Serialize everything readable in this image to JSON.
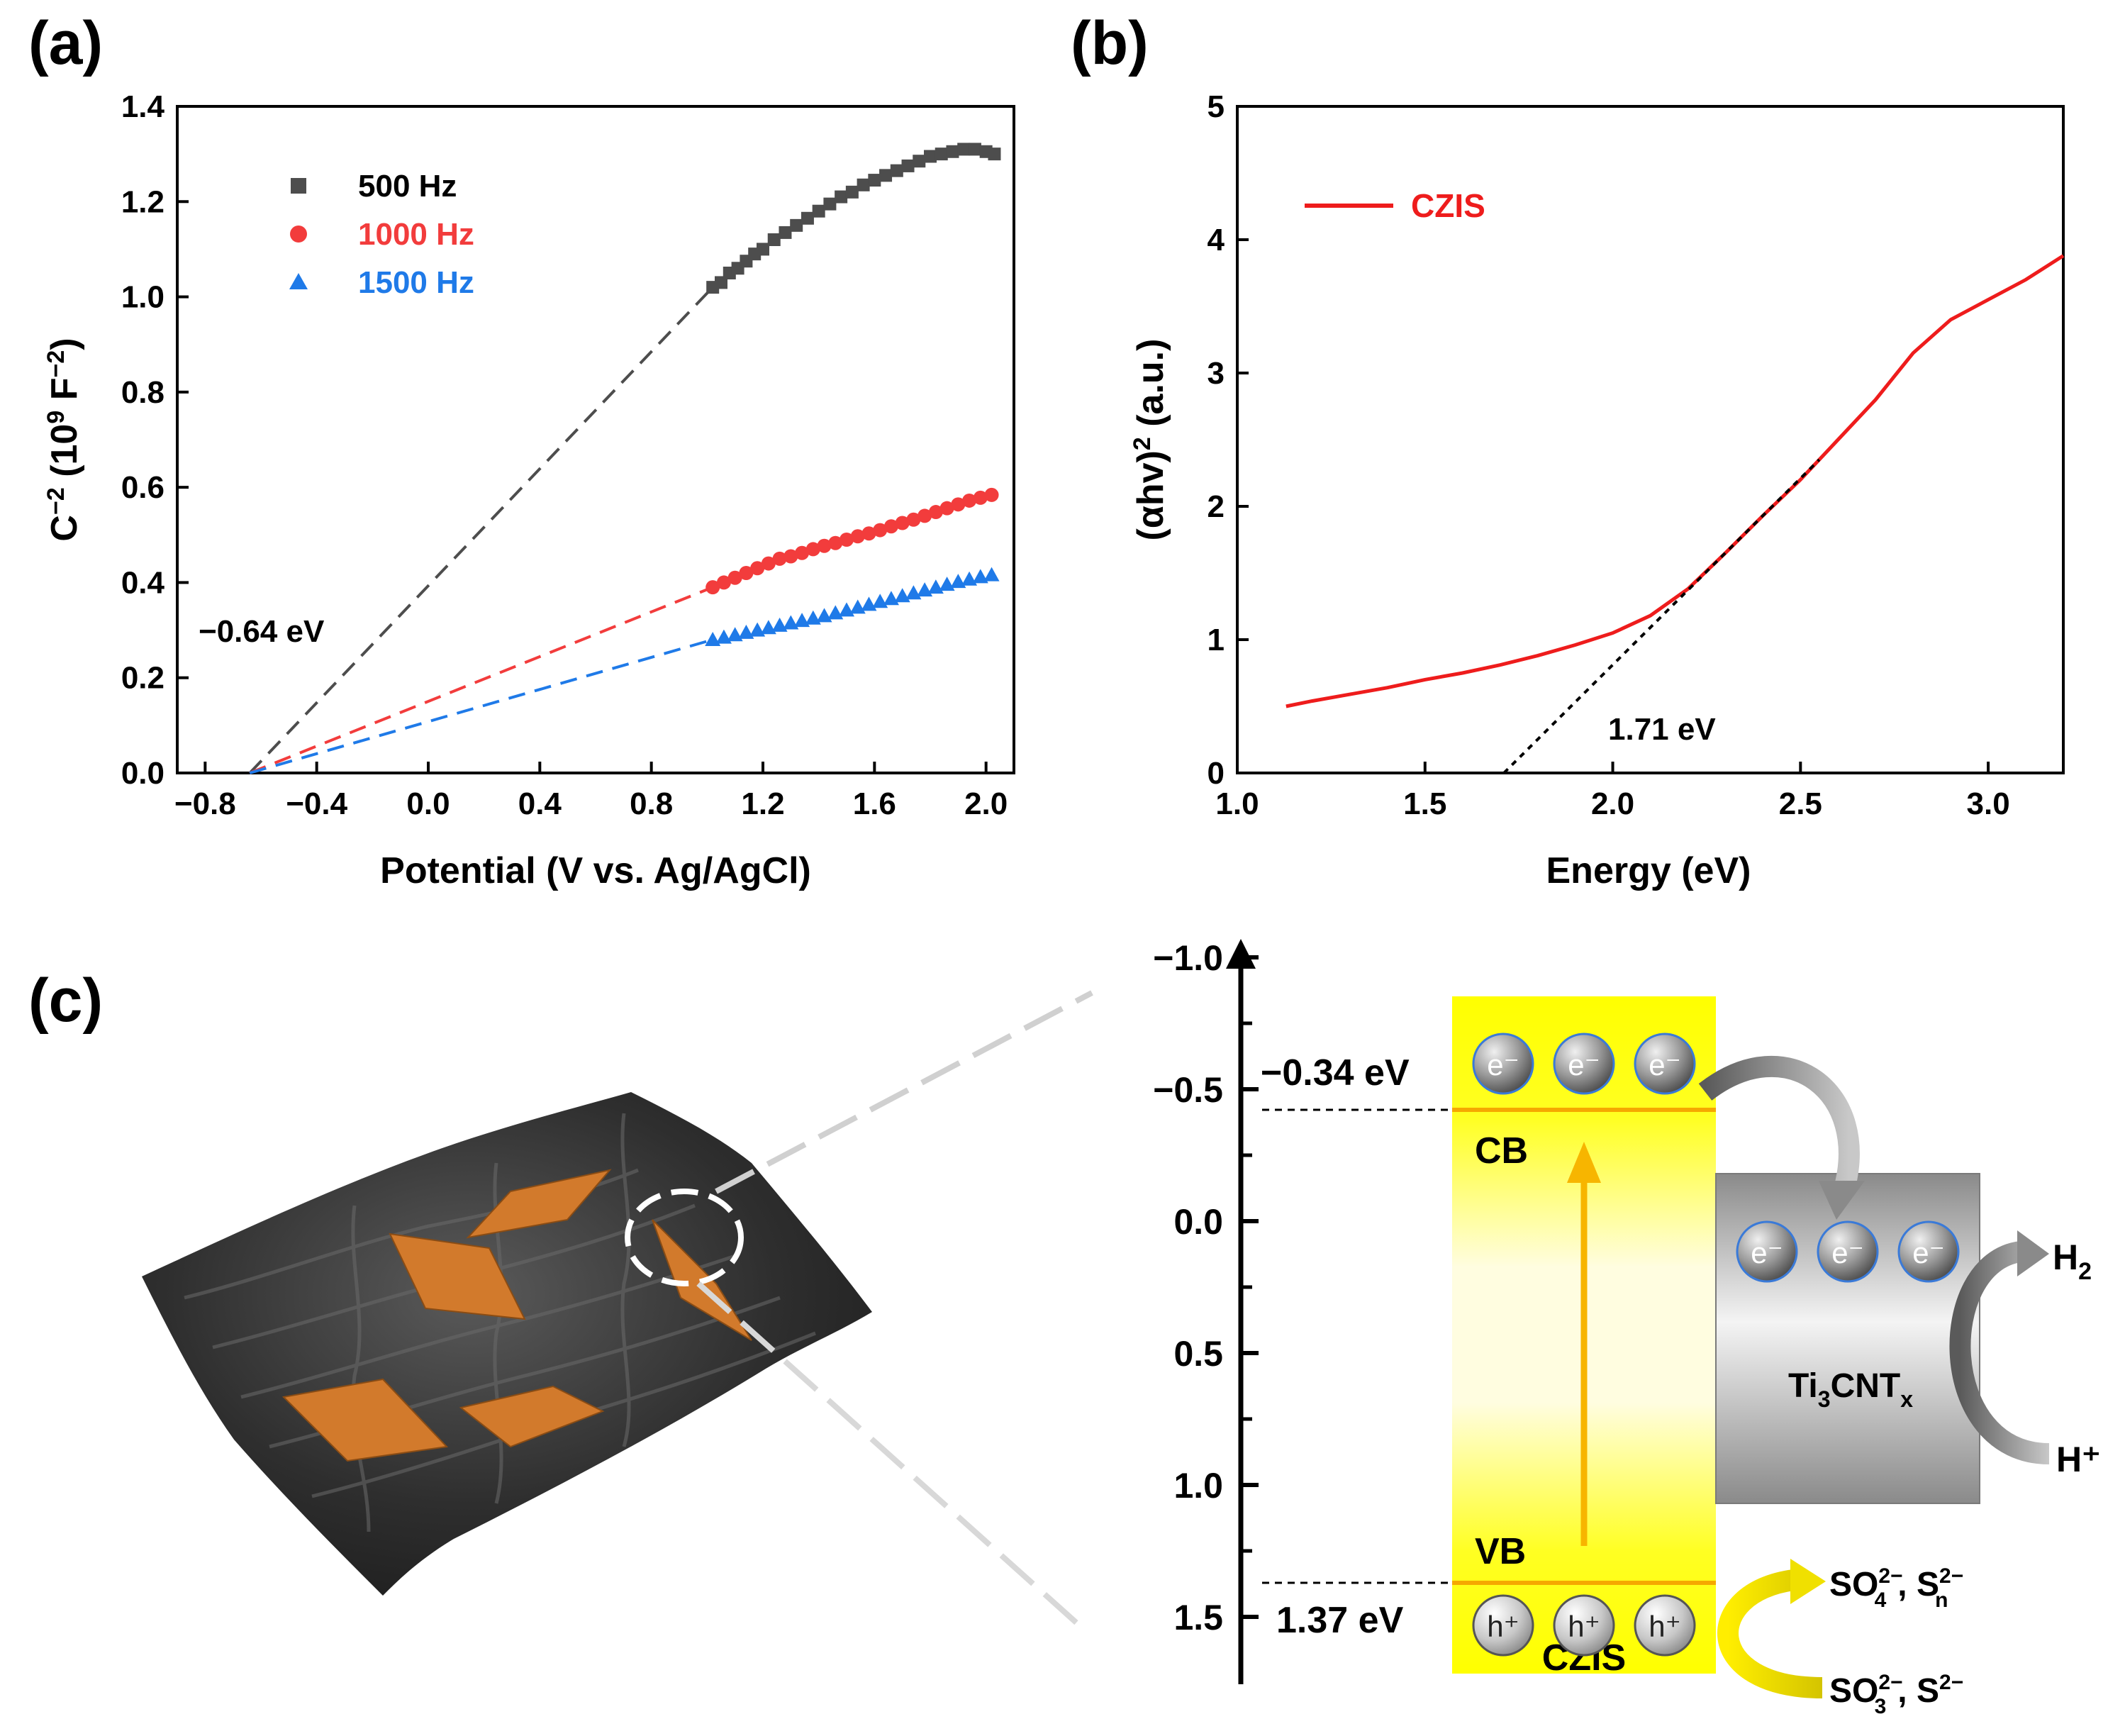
{
  "panels": {
    "a": "(a)",
    "b": "(b)",
    "c": "(c)"
  },
  "chart_data": [
    {
      "id": "a",
      "type": "scatter",
      "title": "",
      "xlabel": "Potential (V vs. Ag/AgCl)",
      "ylabel": "C",
      "ylabel_sup1": "−2",
      "ylabel_mid": " (10",
      "ylabel_sup2": "9",
      "ylabel_mid2": " F",
      "ylabel_sup3": "−2",
      "ylabel_end": ")",
      "xlim": [
        -0.9,
        2.1
      ],
      "ylim": [
        0,
        1.4
      ],
      "xticks": [
        -0.8,
        -0.4,
        0.0,
        0.4,
        0.8,
        1.2,
        1.6,
        2.0
      ],
      "xtick_labels": [
        "−0.8",
        "−0.4",
        "0.0",
        "0.4",
        "0.8",
        "1.2",
        "1.6",
        "2.0"
      ],
      "yticks": [
        0.0,
        0.2,
        0.4,
        0.6,
        0.8,
        1.0,
        1.2,
        1.4
      ],
      "ytick_labels": [
        "0.0",
        "0.2",
        "0.4",
        "0.6",
        "0.8",
        "1.0",
        "1.2",
        "1.4"
      ],
      "legend_position": "top-left",
      "annotation": "−0.64 eV",
      "x_intercept": -0.64,
      "series": [
        {
          "name": "500 Hz",
          "color": "#4d4d4d",
          "marker": "square",
          "x": [
            1.02,
            1.05,
            1.08,
            1.11,
            1.14,
            1.17,
            1.2,
            1.24,
            1.28,
            1.32,
            1.36,
            1.4,
            1.44,
            1.48,
            1.52,
            1.56,
            1.6,
            1.64,
            1.68,
            1.72,
            1.76,
            1.8,
            1.84,
            1.88,
            1.92,
            1.96,
            2.0,
            2.03
          ],
          "values": [
            1.02,
            1.03,
            1.05,
            1.06,
            1.075,
            1.09,
            1.1,
            1.12,
            1.135,
            1.15,
            1.165,
            1.18,
            1.195,
            1.21,
            1.22,
            1.235,
            1.245,
            1.255,
            1.265,
            1.275,
            1.285,
            1.295,
            1.3,
            1.305,
            1.31,
            1.31,
            1.305,
            1.3
          ],
          "fit_to": 1.02
        },
        {
          "name": "1000 Hz",
          "color": "#f23c3c",
          "marker": "circle",
          "x": [
            1.02,
            1.06,
            1.1,
            1.14,
            1.18,
            1.22,
            1.26,
            1.3,
            1.34,
            1.38,
            1.42,
            1.46,
            1.5,
            1.54,
            1.58,
            1.62,
            1.66,
            1.7,
            1.74,
            1.78,
            1.82,
            1.86,
            1.9,
            1.94,
            1.98,
            2.02
          ],
          "values": [
            0.39,
            0.4,
            0.41,
            0.42,
            0.43,
            0.44,
            0.45,
            0.455,
            0.462,
            0.47,
            0.477,
            0.483,
            0.49,
            0.497,
            0.503,
            0.51,
            0.518,
            0.525,
            0.532,
            0.54,
            0.548,
            0.556,
            0.564,
            0.572,
            0.578,
            0.584
          ],
          "fit_to": 0.39
        },
        {
          "name": "1500 Hz",
          "color": "#1f7ae8",
          "marker": "triangle",
          "x": [
            1.02,
            1.06,
            1.1,
            1.14,
            1.18,
            1.22,
            1.26,
            1.3,
            1.34,
            1.38,
            1.42,
            1.46,
            1.5,
            1.54,
            1.58,
            1.62,
            1.66,
            1.7,
            1.74,
            1.78,
            1.82,
            1.86,
            1.9,
            1.94,
            1.98,
            2.02
          ],
          "values": [
            0.28,
            0.285,
            0.29,
            0.295,
            0.3,
            0.305,
            0.31,
            0.315,
            0.32,
            0.325,
            0.33,
            0.336,
            0.342,
            0.348,
            0.354,
            0.36,
            0.366,
            0.372,
            0.378,
            0.384,
            0.39,
            0.396,
            0.402,
            0.407,
            0.412,
            0.416
          ],
          "fit_to": 0.28
        }
      ]
    },
    {
      "id": "b",
      "type": "line",
      "title": "",
      "xlabel": "Energy (eV)",
      "ylabel": "(αhv)",
      "ylabel_sup": "2",
      "ylabel_end": " (a.u.)",
      "xlim": [
        1.0,
        3.2
      ],
      "ylim": [
        0,
        5
      ],
      "xticks": [
        1.0,
        1.5,
        2.0,
        2.5,
        3.0
      ],
      "xtick_labels": [
        "1.0",
        "1.5",
        "2.0",
        "2.5",
        "3.0"
      ],
      "yticks": [
        0,
        1,
        2,
        3,
        4,
        5
      ],
      "ytick_labels": [
        "0",
        "1",
        "2",
        "3",
        "4",
        "5"
      ],
      "legend_position": "top-left",
      "annotation": "1.71 eV",
      "series": [
        {
          "name": "CZIS",
          "color": "#ee1c1c",
          "x": [
            1.13,
            1.2,
            1.3,
            1.4,
            1.45,
            1.5,
            1.6,
            1.7,
            1.8,
            1.9,
            2.0,
            2.1,
            2.2,
            2.3,
            2.4,
            2.5,
            2.6,
            2.7,
            2.8,
            2.9,
            3.0,
            3.1,
            3.2
          ],
          "values": [
            0.5,
            0.54,
            0.59,
            0.64,
            0.67,
            0.7,
            0.75,
            0.81,
            0.88,
            0.96,
            1.05,
            1.18,
            1.38,
            1.65,
            1.93,
            2.2,
            2.5,
            2.8,
            3.15,
            3.4,
            3.55,
            3.7,
            3.88
          ]
        }
      ],
      "tangent": {
        "x": [
          1.71,
          2.55
        ],
        "values": [
          0,
          2.35
        ]
      }
    }
  ],
  "diagram": {
    "axis_ticks": [
      "−1.0",
      "−0.5",
      "0.0",
      "0.5",
      "1.0",
      "1.5"
    ],
    "cb_energy": "−0.34 eV",
    "vb_energy": "1.37 eV",
    "cb_label": "CB",
    "vb_label": "VB",
    "czis_label": "CZIS",
    "mxene_label": "Ti",
    "mxene_sub": "3",
    "mxene_mid": "CNT",
    "mxene_sub2": "x",
    "electron": "e⁻",
    "hole": "h⁺",
    "h2": "H",
    "h2_sub": "2",
    "hplus": "H⁺",
    "product_1": "SO",
    "product_1_sub": "4",
    "product_1_sup": "2−",
    "product_1_sep": ", S",
    "product_1_sub2": "n",
    "product_1_sup2": "2−",
    "reactant_1": "SO",
    "reactant_1_sub": "3",
    "reactant_1_sup": "2−",
    "reactant_1_sep": ", S",
    "reactant_1_sup2": "2−",
    "colors": {
      "band": "#ffff00",
      "band_edge": "#f5b800",
      "arrow": "#f7b500",
      "mxene": "#8c8c8c",
      "sheet": "#d27a2c"
    }
  }
}
